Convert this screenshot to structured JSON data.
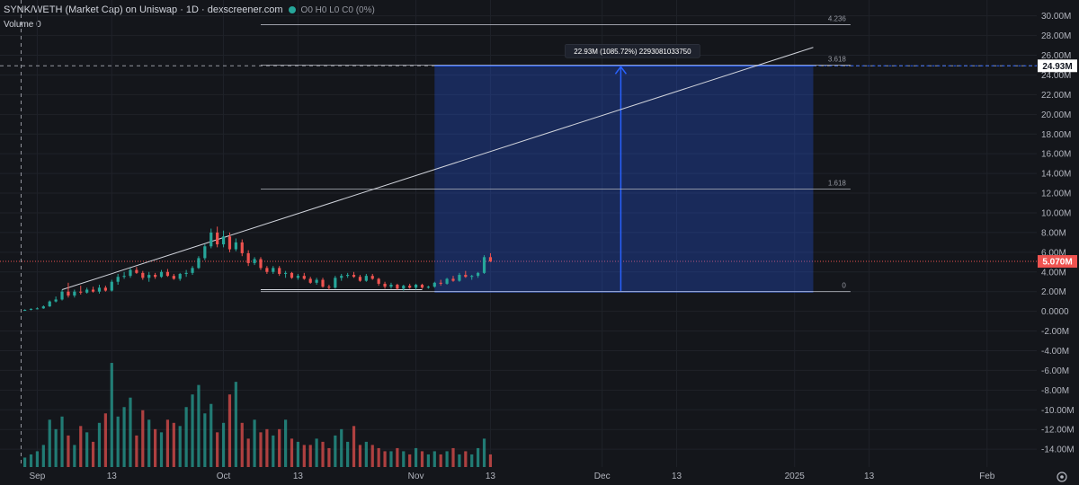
{
  "header": {
    "title": "SYNK/WETH (Market Cap) on Uniswap · 1D · dexscreener.com",
    "ohlc": "O0 H0 L0 C0 (0%)",
    "volume_label": "Volume 0"
  },
  "colors": {
    "up": "#26a69a",
    "down": "#ef5350",
    "measure": "#2962ff",
    "bg": "#14161b"
  },
  "chart_data": {
    "type": "candlestick",
    "y_unit": "M",
    "ylim": [
      -14.9,
      30.7
    ],
    "y_ticks": [
      {
        "v": 30,
        "label": "30.00M"
      },
      {
        "v": 28,
        "label": "28.00M"
      },
      {
        "v": 26,
        "label": "26.00M"
      },
      {
        "v": 24,
        "label": "24.00M"
      },
      {
        "v": 22,
        "label": "22.00M"
      },
      {
        "v": 20,
        "label": "20.00M"
      },
      {
        "v": 18,
        "label": "18.00M"
      },
      {
        "v": 16,
        "label": "16.00M"
      },
      {
        "v": 14,
        "label": "14.00M"
      },
      {
        "v": 12,
        "label": "12.00M"
      },
      {
        "v": 10,
        "label": "10.00M"
      },
      {
        "v": 8,
        "label": "8.00M"
      },
      {
        "v": 6,
        "label": "6.00M"
      },
      {
        "v": 4,
        "label": "4.00M"
      },
      {
        "v": 2,
        "label": "2.00M"
      },
      {
        "v": 0,
        "label": "0.0000"
      },
      {
        "v": -2,
        "label": "-2.00M"
      },
      {
        "v": -4,
        "label": "-4.00M"
      },
      {
        "v": -6,
        "label": "-6.00M"
      },
      {
        "v": -8,
        "label": "-8.00M"
      },
      {
        "v": -10,
        "label": "-10.00M"
      },
      {
        "v": -12,
        "label": "-12.00M"
      },
      {
        "v": -14,
        "label": "-14.00M"
      }
    ],
    "x_range_days": [
      -6,
      161
    ],
    "x_ticks": [
      {
        "d": 0,
        "label": "Sep"
      },
      {
        "d": 12,
        "label": "13"
      },
      {
        "d": 30,
        "label": "Oct"
      },
      {
        "d": 42,
        "label": "13"
      },
      {
        "d": 61,
        "label": "Nov"
      },
      {
        "d": 73,
        "label": "13"
      },
      {
        "d": 91,
        "label": "Dec"
      },
      {
        "d": 103,
        "label": "13"
      },
      {
        "d": 122,
        "label": "2025"
      },
      {
        "d": 134,
        "label": "13"
      },
      {
        "d": 153,
        "label": "Feb"
      }
    ],
    "candles": [
      [
        0.1,
        0.2,
        0.05,
        0.15
      ],
      [
        0.15,
        0.3,
        0.1,
        0.25
      ],
      [
        0.25,
        0.4,
        0.2,
        0.3
      ],
      [
        0.3,
        0.6,
        0.25,
        0.5
      ],
      [
        0.5,
        1.1,
        0.45,
        1.0
      ],
      [
        1.0,
        1.5,
        0.9,
        1.2
      ],
      [
        1.2,
        2.2,
        1.1,
        2.0
      ],
      [
        2.0,
        2.9,
        1.4,
        1.6
      ],
      [
        1.6,
        2.2,
        1.4,
        2.0
      ],
      [
        2.0,
        2.6,
        1.7,
        1.9
      ],
      [
        1.9,
        2.4,
        1.8,
        2.2
      ],
      [
        2.2,
        2.5,
        1.9,
        2.0
      ],
      [
        2.0,
        2.7,
        1.8,
        2.4
      ],
      [
        2.4,
        2.6,
        2.0,
        2.1
      ],
      [
        2.1,
        3.2,
        2.0,
        3.0
      ],
      [
        3.0,
        3.8,
        2.7,
        3.5
      ],
      [
        3.5,
        4.0,
        3.3,
        3.6
      ],
      [
        3.6,
        4.4,
        3.4,
        4.2
      ],
      [
        4.2,
        4.5,
        3.8,
        3.9
      ],
      [
        3.9,
        4.1,
        3.2,
        3.4
      ],
      [
        3.4,
        4.0,
        3.0,
        3.7
      ],
      [
        3.7,
        3.9,
        3.3,
        3.5
      ],
      [
        3.5,
        4.2,
        3.4,
        4.0
      ],
      [
        4.0,
        4.3,
        3.5,
        3.6
      ],
      [
        3.6,
        3.8,
        3.2,
        3.3
      ],
      [
        3.3,
        3.9,
        3.1,
        3.8
      ],
      [
        3.8,
        4.2,
        3.5,
        3.9
      ],
      [
        3.9,
        4.6,
        3.7,
        4.4
      ],
      [
        4.4,
        5.6,
        4.3,
        5.4
      ],
      [
        5.4,
        6.8,
        5.2,
        6.6
      ],
      [
        6.6,
        8.4,
        6.4,
        8.0
      ],
      [
        8.0,
        8.6,
        6.5,
        6.8
      ],
      [
        6.8,
        8.2,
        6.5,
        7.6
      ],
      [
        7.6,
        8.0,
        6.0,
        6.3
      ],
      [
        6.3,
        7.4,
        6.1,
        7.0
      ],
      [
        7.0,
        7.3,
        5.6,
        5.9
      ],
      [
        5.9,
        6.2,
        4.6,
        4.9
      ],
      [
        4.9,
        5.5,
        4.7,
        5.3
      ],
      [
        5.3,
        5.5,
        4.2,
        4.4
      ],
      [
        4.4,
        4.6,
        3.8,
        4.0
      ],
      [
        4.0,
        4.6,
        3.8,
        4.4
      ],
      [
        4.4,
        4.6,
        3.6,
        3.8
      ],
      [
        3.8,
        4.1,
        3.4,
        3.9
      ],
      [
        3.9,
        4.0,
        3.3,
        3.4
      ],
      [
        3.4,
        3.8,
        3.2,
        3.6
      ],
      [
        3.6,
        3.9,
        3.2,
        3.3
      ],
      [
        3.3,
        3.5,
        2.8,
        2.9
      ],
      [
        2.9,
        3.4,
        2.7,
        3.2
      ],
      [
        3.2,
        3.4,
        2.4,
        2.5
      ],
      [
        2.5,
        2.7,
        2.2,
        2.4
      ],
      [
        2.4,
        3.6,
        2.3,
        3.4
      ],
      [
        3.4,
        3.8,
        3.1,
        3.6
      ],
      [
        3.6,
        3.9,
        3.4,
        3.7
      ],
      [
        3.7,
        4.0,
        3.4,
        3.5
      ],
      [
        3.5,
        3.7,
        3.0,
        3.1
      ],
      [
        3.1,
        3.8,
        3.0,
        3.6
      ],
      [
        3.6,
        3.8,
        3.2,
        3.3
      ],
      [
        3.3,
        3.4,
        2.6,
        2.8
      ],
      [
        2.8,
        3.0,
        2.3,
        2.5
      ],
      [
        2.5,
        2.9,
        2.3,
        2.7
      ],
      [
        2.7,
        2.8,
        2.2,
        2.3
      ],
      [
        2.3,
        2.7,
        2.1,
        2.6
      ],
      [
        2.6,
        2.8,
        2.3,
        2.4
      ],
      [
        2.4,
        2.8,
        2.2,
        2.7
      ],
      [
        2.7,
        2.8,
        2.3,
        2.4
      ],
      [
        2.4,
        2.6,
        2.3,
        2.5
      ],
      [
        2.5,
        3.0,
        2.4,
        2.9
      ],
      [
        2.9,
        3.2,
        2.6,
        2.8
      ],
      [
        2.8,
        3.4,
        2.7,
        3.3
      ],
      [
        3.3,
        3.6,
        3.0,
        3.1
      ],
      [
        3.1,
        3.9,
        3.0,
        3.7
      ],
      [
        3.7,
        4.1,
        3.4,
        3.5
      ],
      [
        3.5,
        3.7,
        3.2,
        3.6
      ],
      [
        3.6,
        4.0,
        3.4,
        3.9
      ],
      [
        3.9,
        5.7,
        3.8,
        5.5
      ],
      [
        5.5,
        5.9,
        5.0,
        5.07
      ]
    ],
    "volumes": [
      0.3,
      0.4,
      0.5,
      0.7,
      1.5,
      1.2,
      1.6,
      1.0,
      0.7,
      1.3,
      1.1,
      0.8,
      1.4,
      1.7,
      3.3,
      1.6,
      1.9,
      2.2,
      1.0,
      1.8,
      1.5,
      1.2,
      1.1,
      1.5,
      1.4,
      1.3,
      1.9,
      2.3,
      2.6,
      1.7,
      2.0,
      1.1,
      1.4,
      2.3,
      2.7,
      1.4,
      0.9,
      1.5,
      1.1,
      1.2,
      1.0,
      1.2,
      1.5,
      0.9,
      0.8,
      0.7,
      0.7,
      0.9,
      0.8,
      0.6,
      1.0,
      1.2,
      0.8,
      1.3,
      0.7,
      0.8,
      0.7,
      0.6,
      0.5,
      0.5,
      0.6,
      0.5,
      0.4,
      0.6,
      0.5,
      0.4,
      0.5,
      0.4,
      0.5,
      0.6,
      0.4,
      0.5,
      0.4,
      0.6,
      0.9,
      0.4
    ],
    "volume_axis_max": 3.7,
    "fib_levels": [
      {
        "label": "4.236",
        "value": 29.1
      },
      {
        "label": "3.618",
        "value": 25.0
      },
      {
        "label": "1.618",
        "value": 12.4
      },
      {
        "label": "0",
        "value": 2.0
      }
    ],
    "fib_x_days": [
      36,
      131
    ],
    "trendline": {
      "from": [
        4,
        2.2
      ],
      "to": [
        125,
        26.8
      ]
    },
    "channel_base": {
      "from": [
        36,
        2.2
      ],
      "to": [
        62,
        2.2
      ]
    },
    "measure": {
      "x_days": [
        64,
        125
      ],
      "from_value": 2.0,
      "to_value": 24.93,
      "arrow_x_day": 94,
      "label": "22.93M (1085.72%) 2293081033750"
    },
    "crosshair": {
      "x_day": -2.6,
      "value": 24.93,
      "label": "24.93M"
    },
    "last_price": {
      "value": 5.07,
      "label": "5.070M"
    }
  }
}
